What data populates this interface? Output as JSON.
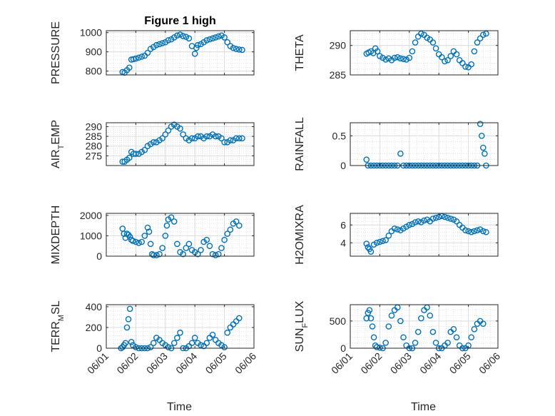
{
  "figure": {
    "title": "Figure 1 high",
    "marker_color": "#0072BD",
    "axes_color": "#262626",
    "grid_color": "#dcdcdc"
  },
  "chart_data": [
    {
      "type": "scatter",
      "ylabel": "PRESSURE",
      "title": "Figure 1 high",
      "xlabel": "",
      "xlim": [
        0,
        5
      ],
      "xticks": [
        0,
        1,
        2,
        3,
        4,
        5
      ],
      "xtick_labels": [
        "",
        "",
        "",
        "",
        "",
        ""
      ],
      "ylim": [
        780,
        1010
      ],
      "yticks": [
        800,
        900,
        1000
      ],
      "grid": true,
      "x": [
        0.55,
        0.62,
        0.7,
        0.78,
        0.85,
        0.92,
        1.0,
        1.1,
        1.2,
        1.3,
        1.4,
        1.5,
        1.6,
        1.7,
        1.8,
        1.9,
        2.0,
        2.1,
        2.2,
        2.3,
        2.4,
        2.5,
        2.6,
        2.7,
        2.8,
        2.9,
        3.0,
        3.05,
        3.1,
        3.2,
        3.3,
        3.4,
        3.5,
        3.6,
        3.7,
        3.8,
        3.9,
        4.0,
        4.1,
        4.2,
        4.3,
        4.4,
        4.5,
        4.6
      ],
      "y": [
        795,
        792,
        805,
        818,
        860,
        862,
        865,
        870,
        875,
        880,
        895,
        915,
        925,
        935,
        940,
        945,
        950,
        960,
        965,
        975,
        985,
        990,
        982,
        978,
        970,
        930,
        890,
        920,
        935,
        940,
        950,
        960,
        965,
        970,
        975,
        980,
        985,
        975,
        950,
        930,
        920,
        915,
        912,
        910
      ]
    },
    {
      "type": "scatter",
      "ylabel": "THETA",
      "xlabel": "",
      "xlim": [
        0,
        5
      ],
      "xticks": [
        0,
        1,
        2,
        3,
        4,
        5
      ],
      "xtick_labels": [
        "",
        "",
        "",
        "",
        "",
        ""
      ],
      "ylim": [
        285,
        292.5
      ],
      "yticks": [
        285,
        290
      ],
      "grid": true,
      "x": [
        0.55,
        0.62,
        0.7,
        0.78,
        0.85,
        0.92,
        1.0,
        1.1,
        1.2,
        1.3,
        1.4,
        1.5,
        1.6,
        1.7,
        1.8,
        1.9,
        2.0,
        2.1,
        2.2,
        2.3,
        2.4,
        2.5,
        2.6,
        2.7,
        2.8,
        2.9,
        3.0,
        3.1,
        3.2,
        3.3,
        3.4,
        3.5,
        3.6,
        3.7,
        3.8,
        3.9,
        4.0,
        4.1,
        4.2,
        4.3,
        4.4,
        4.5,
        4.6
      ],
      "y": [
        288.6,
        288.8,
        289.0,
        288.7,
        289.5,
        289.0,
        288.2,
        287.9,
        287.6,
        287.8,
        287.5,
        287.9,
        288.0,
        287.8,
        287.7,
        287.6,
        287.9,
        289.0,
        290.5,
        291.5,
        292.0,
        291.8,
        291.3,
        291.0,
        290.5,
        289.5,
        288.5,
        288.0,
        287.3,
        287.5,
        288.2,
        289.0,
        288.5,
        287.5,
        287.0,
        286.4,
        286.3,
        286.8,
        289.0,
        290.5,
        291.2,
        291.8,
        292.0
      ]
    },
    {
      "type": "scatter",
      "ylabel": "AIR_TEMP",
      "xlabel": "",
      "xlim": [
        0,
        5
      ],
      "xticks": [
        0,
        1,
        2,
        3,
        4,
        5
      ],
      "xtick_labels": [
        "",
        "",
        "",
        "",
        "",
        ""
      ],
      "ylim": [
        270,
        292
      ],
      "yticks": [
        275,
        280,
        285,
        290
      ],
      "grid": true,
      "x": [
        0.55,
        0.62,
        0.7,
        0.78,
        0.85,
        0.92,
        1.0,
        1.1,
        1.2,
        1.3,
        1.4,
        1.5,
        1.6,
        1.7,
        1.8,
        1.9,
        2.0,
        2.1,
        2.2,
        2.3,
        2.4,
        2.5,
        2.6,
        2.7,
        2.8,
        2.9,
        3.0,
        3.1,
        3.2,
        3.3,
        3.4,
        3.5,
        3.6,
        3.7,
        3.8,
        3.9,
        4.0,
        4.1,
        4.2,
        4.3,
        4.4,
        4.5,
        4.6
      ],
      "y": [
        272,
        272,
        273,
        274,
        277,
        276,
        276,
        276,
        277,
        278,
        280,
        281,
        282,
        282,
        283,
        284,
        286,
        288,
        290,
        291,
        290,
        289,
        286,
        284,
        283,
        284,
        284,
        285,
        285,
        284,
        285,
        285,
        286,
        285,
        285,
        284,
        282,
        282,
        283,
        283,
        284,
        284,
        284
      ]
    },
    {
      "type": "scatter",
      "ylabel": "RAINFALL",
      "xlabel": "",
      "xlim": [
        0,
        5
      ],
      "xticks": [
        0,
        1,
        2,
        3,
        4,
        5
      ],
      "xtick_labels": [
        "",
        "",
        "",
        "",
        "",
        ""
      ],
      "ylim": [
        0,
        0.72
      ],
      "yticks": [
        0,
        0.5
      ],
      "grid": true,
      "x": [
        0.55,
        0.6,
        0.7,
        0.8,
        0.9,
        1.0,
        1.1,
        1.2,
        1.3,
        1.4,
        1.5,
        1.6,
        1.7,
        1.8,
        1.9,
        2.0,
        2.1,
        2.2,
        2.3,
        2.4,
        2.5,
        2.6,
        2.7,
        2.8,
        2.9,
        3.0,
        3.1,
        3.2,
        3.3,
        3.4,
        3.5,
        3.6,
        3.7,
        3.8,
        3.9,
        4.0,
        4.1,
        4.2,
        4.3,
        4.4,
        4.45,
        4.5,
        4.55,
        4.6
      ],
      "y": [
        0.1,
        0,
        0,
        0,
        0,
        0,
        0,
        0,
        0,
        0,
        0,
        0,
        0.2,
        0,
        0,
        0,
        0,
        0,
        0,
        0,
        0,
        0,
        0,
        0,
        0,
        0,
        0,
        0,
        0,
        0,
        0,
        0,
        0,
        0,
        0,
        0,
        0,
        0,
        0,
        0.7,
        0.5,
        0.3,
        0.2,
        0
      ]
    },
    {
      "type": "scatter",
      "ylabel": "MIXDEPTH",
      "xlabel": "",
      "xlim": [
        0,
        5
      ],
      "xticks": [
        0,
        1,
        2,
        3,
        4,
        5
      ],
      "xtick_labels": [
        "",
        "",
        "",
        "",
        "",
        ""
      ],
      "ylim": [
        0,
        2100
      ],
      "yticks": [
        0,
        1000,
        2000
      ],
      "grid": true,
      "x": [
        0.55,
        0.6,
        0.65,
        0.7,
        0.75,
        0.8,
        0.85,
        0.9,
        1.0,
        1.1,
        1.2,
        1.3,
        1.4,
        1.45,
        1.5,
        1.55,
        1.6,
        1.7,
        1.8,
        1.9,
        2.0,
        2.05,
        2.1,
        2.2,
        2.3,
        2.4,
        2.5,
        2.6,
        2.7,
        2.8,
        2.9,
        3.0,
        3.1,
        3.2,
        3.3,
        3.4,
        3.5,
        3.6,
        3.7,
        3.8,
        3.9,
        4.0,
        4.1,
        4.2,
        4.3,
        4.4,
        4.5
      ],
      "y": [
        1350,
        1100,
        900,
        1100,
        1050,
        950,
        800,
        750,
        700,
        650,
        700,
        1000,
        1400,
        1200,
        600,
        100,
        50,
        50,
        100,
        400,
        1000,
        1500,
        1800,
        1900,
        1700,
        600,
        200,
        100,
        400,
        600,
        300,
        200,
        100,
        300,
        700,
        800,
        500,
        100,
        50,
        100,
        400,
        800,
        1100,
        1300,
        1600,
        1700,
        1500
      ]
    },
    {
      "type": "scatter",
      "ylabel": "H2OMIXRA",
      "xlabel": "",
      "xlim": [
        0,
        5
      ],
      "xticks": [
        0,
        1,
        2,
        3,
        4,
        5
      ],
      "xtick_labels": [
        "",
        "",
        "",
        "",
        "",
        ""
      ],
      "ylim": [
        2.5,
        7.3
      ],
      "yticks": [
        4,
        6
      ],
      "grid": true,
      "x": [
        0.55,
        0.6,
        0.65,
        0.7,
        0.8,
        0.9,
        1.0,
        1.1,
        1.2,
        1.3,
        1.4,
        1.5,
        1.6,
        1.7,
        1.8,
        1.9,
        2.0,
        2.1,
        2.2,
        2.3,
        2.4,
        2.5,
        2.6,
        2.7,
        2.8,
        2.9,
        3.0,
        3.1,
        3.2,
        3.3,
        3.4,
        3.5,
        3.6,
        3.7,
        3.8,
        3.9,
        4.0,
        4.1,
        4.2,
        4.3,
        4.4,
        4.5,
        4.6
      ],
      "y": [
        3.9,
        3.5,
        3.3,
        3.0,
        3.8,
        4.0,
        4.1,
        4.2,
        4.3,
        4.8,
        5.3,
        5.6,
        5.5,
        5.4,
        5.6,
        5.8,
        6.0,
        6.1,
        6.3,
        6.4,
        6.3,
        6.5,
        6.6,
        6.4,
        6.7,
        6.8,
        6.9,
        7.0,
        6.9,
        6.8,
        6.7,
        6.6,
        6.4,
        6.0,
        5.7,
        5.4,
        5.3,
        5.2,
        5.3,
        5.4,
        5.5,
        5.3,
        5.2
      ]
    },
    {
      "type": "scatter",
      "ylabel": "TERR_MSL",
      "xlabel": "Time",
      "xlim": [
        0,
        5
      ],
      "xticks": [
        0,
        1,
        2,
        3,
        4,
        5
      ],
      "xtick_labels": [
        "06/01",
        "06/02",
        "06/03",
        "06/04",
        "06/05",
        "06/06"
      ],
      "ylim": [
        0,
        420
      ],
      "yticks": [
        0,
        200,
        400
      ],
      "grid": true,
      "x": [
        0.5,
        0.55,
        0.6,
        0.65,
        0.7,
        0.75,
        0.8,
        0.85,
        0.9,
        1.0,
        1.1,
        1.2,
        1.3,
        1.4,
        1.5,
        1.6,
        1.7,
        1.8,
        1.9,
        2.0,
        2.1,
        2.2,
        2.3,
        2.4,
        2.5,
        2.6,
        2.7,
        2.8,
        2.9,
        3.0,
        3.1,
        3.2,
        3.3,
        3.4,
        3.5,
        3.6,
        3.7,
        3.8,
        3.9,
        4.0,
        4.1,
        4.2,
        4.3,
        4.4,
        4.5
      ],
      "y": [
        0,
        10,
        30,
        50,
        200,
        280,
        380,
        60,
        30,
        10,
        0,
        0,
        0,
        0,
        10,
        50,
        100,
        80,
        50,
        30,
        10,
        0,
        50,
        100,
        150,
        0,
        0,
        20,
        50,
        100,
        50,
        30,
        20,
        50,
        100,
        130,
        80,
        50,
        30,
        10,
        150,
        200,
        230,
        260,
        290
      ]
    },
    {
      "type": "scatter",
      "ylabel": "SUN_FLUX",
      "xlabel": "Time",
      "xlim": [
        0,
        5
      ],
      "xticks": [
        0,
        1,
        2,
        3,
        4,
        5
      ],
      "xtick_labels": [
        "06/01",
        "06/02",
        "06/03",
        "06/04",
        "06/05",
        "06/06"
      ],
      "ylim": [
        0,
        800
      ],
      "yticks": [
        0,
        500
      ],
      "grid": true,
      "x": [
        0.55,
        0.6,
        0.65,
        0.7,
        0.75,
        0.8,
        0.85,
        0.9,
        1.0,
        1.1,
        1.2,
        1.3,
        1.4,
        1.5,
        1.6,
        1.7,
        1.8,
        1.9,
        2.0,
        2.1,
        2.2,
        2.3,
        2.4,
        2.5,
        2.6,
        2.7,
        2.8,
        2.9,
        3.0,
        3.1,
        3.2,
        3.3,
        3.4,
        3.5,
        3.6,
        3.7,
        3.8,
        3.9,
        4.0,
        4.1,
        4.2,
        4.3,
        4.4,
        4.5
      ],
      "y": [
        550,
        650,
        700,
        550,
        400,
        200,
        50,
        20,
        10,
        0,
        100,
        400,
        600,
        700,
        750,
        500,
        200,
        50,
        0,
        0,
        100,
        300,
        550,
        700,
        750,
        600,
        300,
        100,
        0,
        0,
        50,
        100,
        300,
        350,
        200,
        50,
        0,
        0,
        50,
        200,
        350,
        450,
        500,
        450
      ]
    }
  ]
}
